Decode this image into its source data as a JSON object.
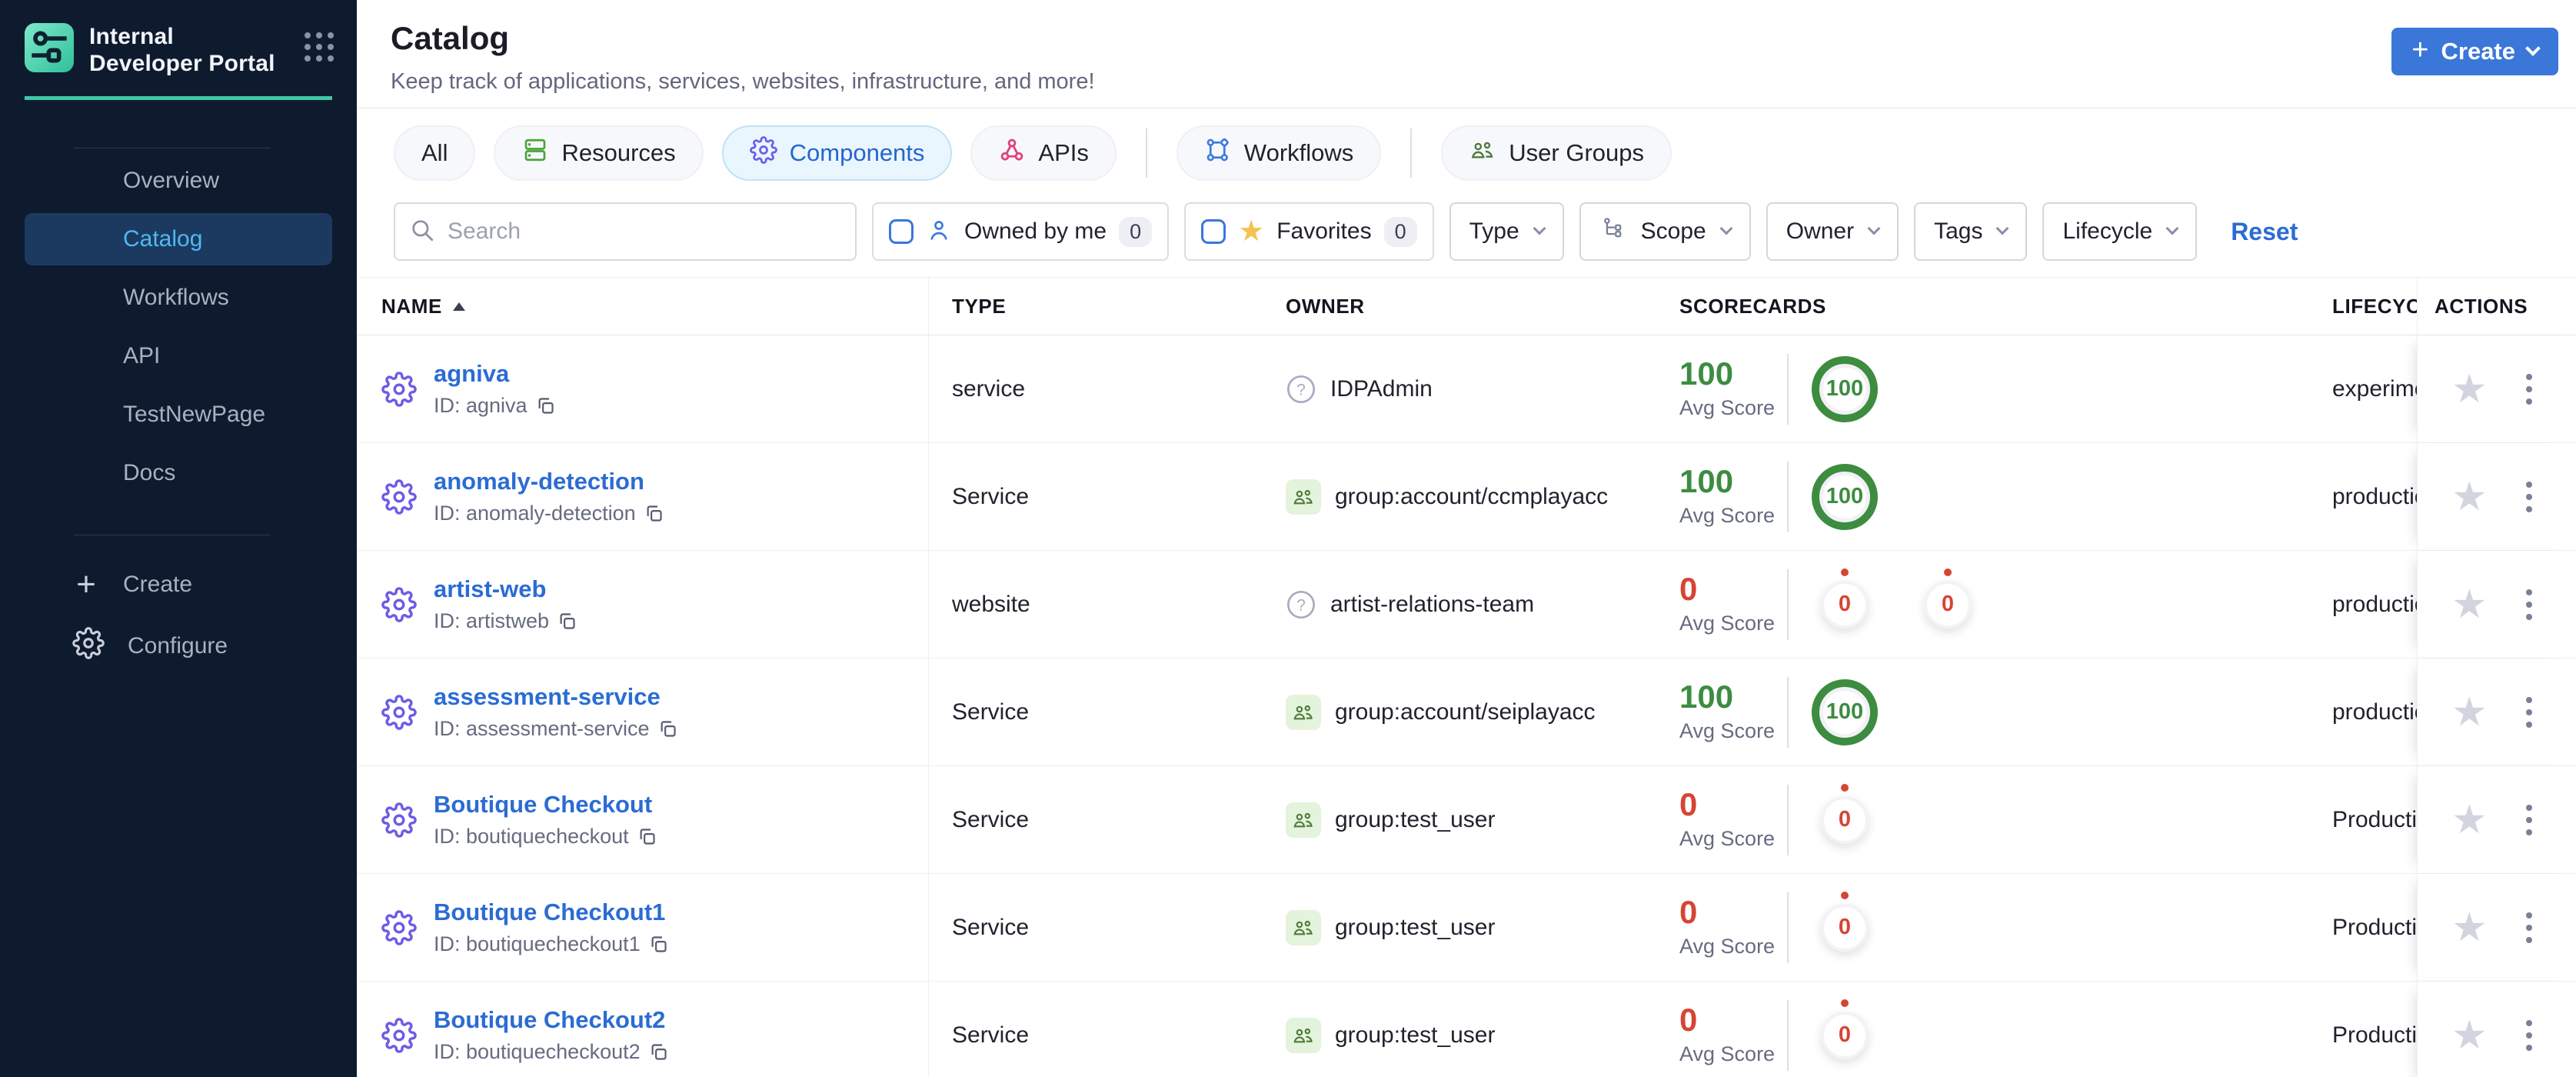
{
  "colors": {
    "sidebar_bg": "#0E1B2E",
    "teal_accent": "#3FC6A7",
    "primary_blue": "#3B77D9",
    "link_blue": "#2B6CD4",
    "active_nav_text": "#4FB9F0",
    "score_green": "#3D8C40",
    "score_red": "#D64533",
    "gear_purple": "#6A5CE8",
    "apis_pink": "#E0447C",
    "favorite_yellow": "#F2C34E",
    "owner_group_green": "#4E7A3C"
  },
  "sidebar": {
    "brand_title": "Internal Developer Portal",
    "items": [
      {
        "label": "Overview",
        "active": false
      },
      {
        "label": "Catalog",
        "active": true
      },
      {
        "label": "Workflows",
        "active": false
      },
      {
        "label": "API",
        "active": false
      },
      {
        "label": "TestNewPage",
        "active": false
      },
      {
        "label": "Docs",
        "active": false
      }
    ],
    "create_label": "Create",
    "configure_label": "Configure"
  },
  "header": {
    "title": "Catalog",
    "subtitle": "Keep track of applications, services, websites, infrastructure, and more!",
    "create_label": "Create"
  },
  "tabs": [
    {
      "label": "All",
      "icon": "none",
      "active": false
    },
    {
      "label": "Resources",
      "icon": "resources-stack",
      "active": false
    },
    {
      "label": "Components",
      "icon": "gear",
      "active": true
    },
    {
      "label": "APIs",
      "icon": "api-nodes",
      "active": false
    },
    {
      "label": "Workflows",
      "icon": "workflow-branch",
      "active": false
    },
    {
      "label": "User Groups",
      "icon": "user-group",
      "active": false
    }
  ],
  "filters": {
    "search_placeholder": "Search",
    "toggles": [
      {
        "label": "Owned by me",
        "count": "0",
        "icon": "person"
      },
      {
        "label": "Favorites",
        "count": "0",
        "icon": "star"
      }
    ],
    "dropdowns": [
      {
        "label": "Type",
        "icon": "none"
      },
      {
        "label": "Scope",
        "icon": "hierarchy"
      },
      {
        "label": "Owner",
        "icon": "none"
      },
      {
        "label": "Tags",
        "icon": "none"
      },
      {
        "label": "Lifecycle",
        "icon": "none"
      }
    ],
    "reset_label": "Reset"
  },
  "table": {
    "columns": [
      {
        "label": "NAME",
        "sorted": "asc"
      },
      {
        "label": "TYPE"
      },
      {
        "label": "OWNER"
      },
      {
        "label": "SCORECARDS"
      },
      {
        "label": "LIFECYCLE"
      },
      {
        "label": "ACTIONS"
      }
    ],
    "avg_score_label": "Avg Score",
    "rows": [
      {
        "name": "agniva",
        "id_label": "ID: agniva",
        "type": "service",
        "owner": "IDPAdmin",
        "owner_icon": "question",
        "avg_score": "100",
        "score_state": "good",
        "gauges": [
          {
            "value": "100",
            "state": "good"
          }
        ],
        "lifecycle": "experimental"
      },
      {
        "name": "anomaly-detection",
        "id_label": "ID: anomaly-detection",
        "type": "Service",
        "owner": "group:account/ccmplayacc",
        "owner_icon": "group",
        "avg_score": "100",
        "score_state": "good",
        "gauges": [
          {
            "value": "100",
            "state": "good"
          }
        ],
        "lifecycle": "production"
      },
      {
        "name": "artist-web",
        "id_label": "ID: artistweb",
        "type": "website",
        "owner": "artist-relations-team",
        "owner_icon": "question",
        "avg_score": "0",
        "score_state": "zero",
        "gauges": [
          {
            "value": "0",
            "state": "zero"
          },
          {
            "value": "0",
            "state": "zero"
          }
        ],
        "lifecycle": "production"
      },
      {
        "name": "assessment-service",
        "id_label": "ID: assessment-service",
        "type": "Service",
        "owner": "group:account/seiplayacc",
        "owner_icon": "group",
        "avg_score": "100",
        "score_state": "good",
        "gauges": [
          {
            "value": "100",
            "state": "good"
          }
        ],
        "lifecycle": "production"
      },
      {
        "name": "Boutique Checkout",
        "id_label": "ID: boutiquecheckout",
        "type": "Service",
        "owner": "group:test_user",
        "owner_icon": "group",
        "avg_score": "0",
        "score_state": "zero",
        "gauges": [
          {
            "value": "0",
            "state": "zero"
          }
        ],
        "lifecycle": "Production"
      },
      {
        "name": "Boutique Checkout1",
        "id_label": "ID: boutiquecheckout1",
        "type": "Service",
        "owner": "group:test_user",
        "owner_icon": "group",
        "avg_score": "0",
        "score_state": "zero",
        "gauges": [
          {
            "value": "0",
            "state": "zero"
          }
        ],
        "lifecycle": "Production"
      },
      {
        "name": "Boutique Checkout2",
        "id_label": "ID: boutiquecheckout2",
        "type": "Service",
        "owner": "group:test_user",
        "owner_icon": "group",
        "avg_score": "0",
        "score_state": "zero",
        "gauges": [
          {
            "value": "0",
            "state": "zero"
          }
        ],
        "lifecycle": "Production"
      }
    ]
  }
}
